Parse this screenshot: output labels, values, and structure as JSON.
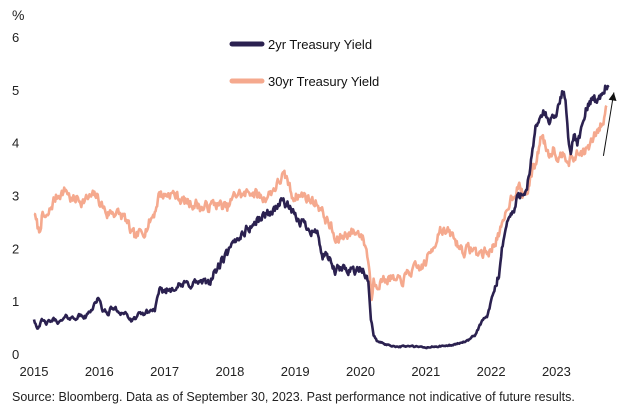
{
  "chart_data": {
    "type": "line",
    "title": "",
    "ylabel": "%",
    "xlabel": "",
    "ylim": [
      0,
      6
    ],
    "xlim": [
      2015.0,
      2023.85
    ],
    "yticks": [
      0,
      1,
      2,
      3,
      4,
      5,
      6
    ],
    "xticks": [
      "2015",
      "2016",
      "2017",
      "2018",
      "2019",
      "2020",
      "2021",
      "2022",
      "2023"
    ],
    "legend_position": "top-center",
    "grid": false,
    "series": [
      {
        "name": "2yr Treasury Yield",
        "color": "#2b2150",
        "points": [
          [
            2015.0,
            0.67
          ],
          [
            2015.05,
            0.5
          ],
          [
            2015.12,
            0.62
          ],
          [
            2015.2,
            0.58
          ],
          [
            2015.3,
            0.65
          ],
          [
            2015.4,
            0.6
          ],
          [
            2015.5,
            0.7
          ],
          [
            2015.6,
            0.68
          ],
          [
            2015.7,
            0.72
          ],
          [
            2015.8,
            0.7
          ],
          [
            2015.9,
            0.9
          ],
          [
            2015.97,
            1.05
          ],
          [
            2016.05,
            0.85
          ],
          [
            2016.12,
            0.75
          ],
          [
            2016.2,
            0.88
          ],
          [
            2016.3,
            0.8
          ],
          [
            2016.4,
            0.78
          ],
          [
            2016.5,
            0.6
          ],
          [
            2016.58,
            0.72
          ],
          [
            2016.65,
            0.75
          ],
          [
            2016.75,
            0.8
          ],
          [
            2016.85,
            0.85
          ],
          [
            2016.92,
            1.15
          ],
          [
            2017.0,
            1.2
          ],
          [
            2017.08,
            1.22
          ],
          [
            2017.15,
            1.3
          ],
          [
            2017.25,
            1.28
          ],
          [
            2017.35,
            1.32
          ],
          [
            2017.45,
            1.35
          ],
          [
            2017.55,
            1.35
          ],
          [
            2017.62,
            1.32
          ],
          [
            2017.7,
            1.4
          ],
          [
            2017.8,
            1.6
          ],
          [
            2017.88,
            1.75
          ],
          [
            2017.96,
            1.88
          ],
          [
            2018.05,
            2.05
          ],
          [
            2018.15,
            2.25
          ],
          [
            2018.25,
            2.35
          ],
          [
            2018.35,
            2.45
          ],
          [
            2018.45,
            2.55
          ],
          [
            2018.55,
            2.65
          ],
          [
            2018.65,
            2.7
          ],
          [
            2018.75,
            2.85
          ],
          [
            2018.82,
            2.9
          ],
          [
            2018.92,
            2.75
          ],
          [
            2019.0,
            2.55
          ],
          [
            2019.1,
            2.5
          ],
          [
            2019.2,
            2.4
          ],
          [
            2019.28,
            2.35
          ],
          [
            2019.35,
            2.25
          ],
          [
            2019.42,
            1.85
          ],
          [
            2019.5,
            1.8
          ],
          [
            2019.55,
            1.75
          ],
          [
            2019.6,
            1.55
          ],
          [
            2019.68,
            1.6
          ],
          [
            2019.75,
            1.6
          ],
          [
            2019.85,
            1.62
          ],
          [
            2019.95,
            1.58
          ],
          [
            2020.05,
            1.55
          ],
          [
            2020.12,
            1.35
          ],
          [
            2020.16,
            0.7
          ],
          [
            2020.2,
            0.35
          ],
          [
            2020.25,
            0.25
          ],
          [
            2020.35,
            0.2
          ],
          [
            2020.45,
            0.16
          ],
          [
            2020.6,
            0.14
          ],
          [
            2020.75,
            0.15
          ],
          [
            2020.9,
            0.13
          ],
          [
            2021.0,
            0.12
          ],
          [
            2021.15,
            0.14
          ],
          [
            2021.3,
            0.15
          ],
          [
            2021.45,
            0.18
          ],
          [
            2021.55,
            0.22
          ],
          [
            2021.65,
            0.25
          ],
          [
            2021.75,
            0.35
          ],
          [
            2021.85,
            0.6
          ],
          [
            2021.95,
            0.73
          ],
          [
            2022.05,
            1.2
          ],
          [
            2022.12,
            1.5
          ],
          [
            2022.2,
            2.3
          ],
          [
            2022.28,
            2.6
          ],
          [
            2022.35,
            2.7
          ],
          [
            2022.42,
            3.0
          ],
          [
            2022.5,
            3.1
          ],
          [
            2022.55,
            3.2
          ],
          [
            2022.6,
            3.5
          ],
          [
            2022.68,
            4.2
          ],
          [
            2022.75,
            4.5
          ],
          [
            2022.8,
            4.6
          ],
          [
            2022.88,
            4.4
          ],
          [
            2022.95,
            4.42
          ],
          [
            2023.05,
            4.7
          ],
          [
            2023.1,
            5.0
          ],
          [
            2023.14,
            4.8
          ],
          [
            2023.18,
            4.1
          ],
          [
            2023.22,
            3.9
          ],
          [
            2023.28,
            4.1
          ],
          [
            2023.32,
            4.0
          ],
          [
            2023.38,
            4.2
          ],
          [
            2023.45,
            4.6
          ],
          [
            2023.52,
            4.8
          ],
          [
            2023.58,
            4.9
          ],
          [
            2023.62,
            4.75
          ],
          [
            2023.68,
            4.9
          ],
          [
            2023.72,
            5.0
          ],
          [
            2023.76,
            5.1
          ],
          [
            2023.8,
            5.05
          ]
        ]
      },
      {
        "name": "30yr Treasury Yield",
        "color": "#f5a98e",
        "points": [
          [
            2015.0,
            2.7
          ],
          [
            2015.03,
            2.5
          ],
          [
            2015.08,
            2.3
          ],
          [
            2015.12,
            2.6
          ],
          [
            2015.2,
            2.55
          ],
          [
            2015.3,
            2.9
          ],
          [
            2015.4,
            3.05
          ],
          [
            2015.5,
            3.1
          ],
          [
            2015.58,
            2.9
          ],
          [
            2015.66,
            2.95
          ],
          [
            2015.75,
            2.9
          ],
          [
            2015.85,
            2.95
          ],
          [
            2015.95,
            3.0
          ],
          [
            2016.05,
            2.8
          ],
          [
            2016.12,
            2.65
          ],
          [
            2016.2,
            2.7
          ],
          [
            2016.3,
            2.65
          ],
          [
            2016.4,
            2.55
          ],
          [
            2016.5,
            2.25
          ],
          [
            2016.55,
            2.2
          ],
          [
            2016.65,
            2.3
          ],
          [
            2016.75,
            2.45
          ],
          [
            2016.85,
            2.7
          ],
          [
            2016.92,
            3.05
          ],
          [
            2017.0,
            3.0
          ],
          [
            2017.08,
            3.05
          ],
          [
            2017.18,
            3.0
          ],
          [
            2017.28,
            2.9
          ],
          [
            2017.38,
            2.85
          ],
          [
            2017.48,
            2.85
          ],
          [
            2017.58,
            2.75
          ],
          [
            2017.68,
            2.8
          ],
          [
            2017.78,
            2.85
          ],
          [
            2017.88,
            2.8
          ],
          [
            2017.96,
            2.75
          ],
          [
            2018.05,
            2.95
          ],
          [
            2018.12,
            3.05
          ],
          [
            2018.22,
            3.0
          ],
          [
            2018.32,
            3.1
          ],
          [
            2018.42,
            3.0
          ],
          [
            2018.52,
            2.95
          ],
          [
            2018.62,
            3.05
          ],
          [
            2018.72,
            3.2
          ],
          [
            2018.8,
            3.35
          ],
          [
            2018.88,
            3.3
          ],
          [
            2018.95,
            3.0
          ],
          [
            2019.05,
            3.0
          ],
          [
            2019.15,
            3.0
          ],
          [
            2019.25,
            2.9
          ],
          [
            2019.35,
            2.85
          ],
          [
            2019.45,
            2.6
          ],
          [
            2019.55,
            2.4
          ],
          [
            2019.62,
            2.1
          ],
          [
            2019.7,
            2.2
          ],
          [
            2019.8,
            2.3
          ],
          [
            2019.9,
            2.3
          ],
          [
            2020.0,
            2.3
          ],
          [
            2020.08,
            2.05
          ],
          [
            2020.14,
            1.6
          ],
          [
            2020.17,
            1.0
          ],
          [
            2020.2,
            1.4
          ],
          [
            2020.25,
            1.35
          ],
          [
            2020.35,
            1.4
          ],
          [
            2020.45,
            1.45
          ],
          [
            2020.55,
            1.35
          ],
          [
            2020.65,
            1.4
          ],
          [
            2020.75,
            1.55
          ],
          [
            2020.85,
            1.6
          ],
          [
            2020.95,
            1.65
          ],
          [
            2021.05,
            1.85
          ],
          [
            2021.15,
            2.15
          ],
          [
            2021.22,
            2.4
          ],
          [
            2021.3,
            2.3
          ],
          [
            2021.4,
            2.25
          ],
          [
            2021.5,
            2.05
          ],
          [
            2021.6,
            1.95
          ],
          [
            2021.7,
            2.0
          ],
          [
            2021.8,
            1.9
          ],
          [
            2021.9,
            1.92
          ],
          [
            2022.0,
            1.95
          ],
          [
            2022.08,
            2.2
          ],
          [
            2022.18,
            2.4
          ],
          [
            2022.28,
            2.9
          ],
          [
            2022.35,
            3.05
          ],
          [
            2022.42,
            3.2
          ],
          [
            2022.48,
            3.0
          ],
          [
            2022.55,
            3.05
          ],
          [
            2022.62,
            3.4
          ],
          [
            2022.7,
            3.7
          ],
          [
            2022.78,
            4.2
          ],
          [
            2022.82,
            4.0
          ],
          [
            2022.88,
            3.8
          ],
          [
            2022.95,
            3.9
          ],
          [
            2023.05,
            3.7
          ],
          [
            2023.12,
            3.9
          ],
          [
            2023.18,
            3.65
          ],
          [
            2023.25,
            3.7
          ],
          [
            2023.35,
            3.8
          ],
          [
            2023.45,
            3.85
          ],
          [
            2023.52,
            3.95
          ],
          [
            2023.58,
            4.1
          ],
          [
            2023.65,
            4.25
          ],
          [
            2023.72,
            4.4
          ],
          [
            2023.77,
            4.7
          ]
        ]
      }
    ],
    "annotations": [
      {
        "type": "arrow",
        "direction": "up",
        "from": [
          2023.72,
          3.75
        ],
        "to": [
          2023.88,
          4.95
        ]
      }
    ]
  },
  "source_note": "Source: Bloomberg. Data as of September 30, 2023. Past performance not indicative of future results."
}
